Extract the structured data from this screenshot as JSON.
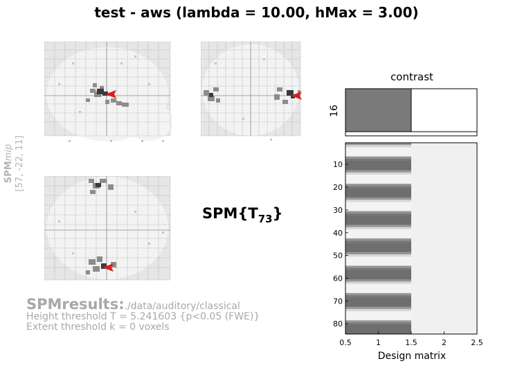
{
  "title": "test - aws (lambda = 10.00, hMax = 3.00)",
  "mip": {
    "label_spm": "SPM",
    "label_mip": "mip",
    "coords": "[57, -22, 11]"
  },
  "stat": {
    "prefix": "SPM{T",
    "df": "73",
    "suffix": "}"
  },
  "results": {
    "heading": "SPMresults:",
    "path": "./data/auditory/classical",
    "height_threshold": "Height threshold T = 5.241603  {p<0.05 (FWE)}",
    "extent_threshold": "Extent threshold k = 0 voxels"
  },
  "contrast": {
    "title": "contrast",
    "ylabel": "16",
    "weights": [
      1,
      0
    ]
  },
  "design_matrix": {
    "xlabel": "Design matrix",
    "x_ticks": [
      "0.5",
      "1",
      "1.5",
      "2",
      "2.5"
    ],
    "y_ticks": [
      "10",
      "20",
      "30",
      "40",
      "50",
      "60",
      "70",
      "80"
    ],
    "n_scans": 84,
    "block_length": 6,
    "colors": {
      "on_block": "#6e6e6e",
      "off_block": "#f4f4f4",
      "constant": "#f0f0f0"
    }
  },
  "colors": {
    "glass_bg": "#e6e6e6",
    "brain_fill": "#f2f2f2",
    "grid": "#9a9a9a",
    "cursor": "#d42020",
    "results_text": "#a8a8a8"
  }
}
